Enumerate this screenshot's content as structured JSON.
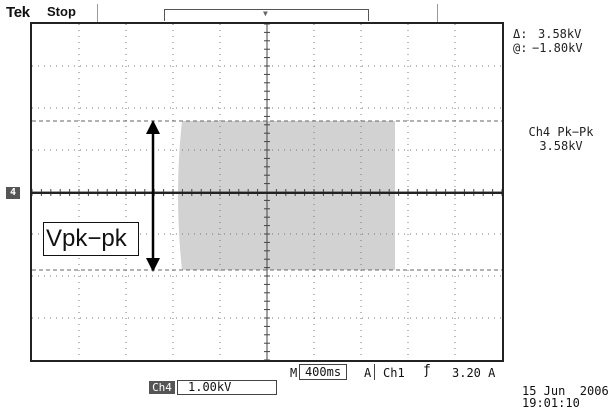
{
  "header": {
    "brand": "Tek",
    "status": "Stop"
  },
  "readouts": {
    "delta_symbol": "Δ:",
    "delta_value": "3.58kV",
    "at_symbol": "@:",
    "at_value": "−1.80kV",
    "measurement_title": "Ch4 Pk−Pk",
    "measurement_value": "3.58kV"
  },
  "channel_marker": "4",
  "annotation": {
    "label": "Vpk−pk"
  },
  "footer": {
    "m_label": "M",
    "timebase": "400ms",
    "trigger_mode": "A",
    "trigger_source": "Ch1",
    "trigger_level": "3.20 A",
    "channel_badge": "Ch4",
    "channel_scale": "1.00kV",
    "date": "15 Jun  2006",
    "time": "19:01:10"
  },
  "colors": {
    "signal_fill": "#d2d2d2",
    "grid": "#7a7a7a",
    "cursor": "#666666"
  }
}
